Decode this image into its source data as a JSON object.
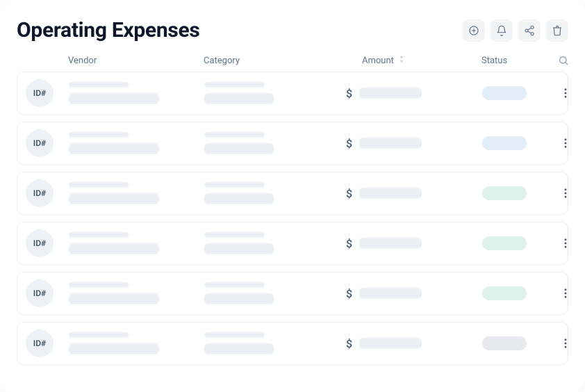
{
  "header": {
    "title": "Operating Expenses"
  },
  "columns": {
    "vendor": "Vendor",
    "category": "Category",
    "amount": "Amount",
    "status": "Status"
  },
  "currency_symbol": "$",
  "id_label": "ID#",
  "colors": {
    "skeleton_default": "#eceff3",
    "status_blue": "#e1edf7",
    "status_green": "#def2eb",
    "status_grey": "#e7e9ec",
    "text_heading": "#0f172a",
    "text_muted": "#64748b",
    "border": "#eceef1",
    "icon_bg": "#f3f4f6",
    "chip_bg": "#eef1f5"
  },
  "rows": [
    {
      "status_color": "#e1edf7"
    },
    {
      "status_color": "#e1edf7"
    },
    {
      "status_color": "#def2eb"
    },
    {
      "status_color": "#def2eb"
    },
    {
      "status_color": "#def2eb"
    },
    {
      "status_color": "#e7e9ec"
    }
  ]
}
